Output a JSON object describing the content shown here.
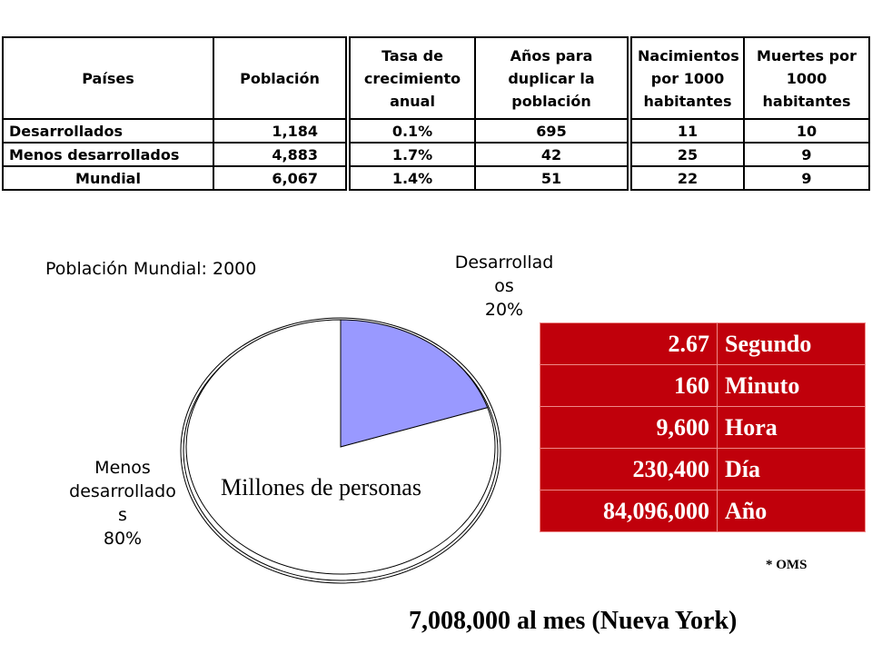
{
  "table": {
    "headers": {
      "pais": "Países",
      "poblacion": "Población",
      "tasa": "Tasa de crecimiento anual",
      "anios": "Años para duplicar la población",
      "nacimientos": "Nacimientos por 1000 habitantes",
      "muertes": "Muertes por 1000 habitantes"
    },
    "rows": [
      {
        "pais": "Desarrollados",
        "poblacion": "1,184",
        "tasa": "0.1%",
        "anios": "695",
        "nacimientos": "11",
        "muertes": "10"
      },
      {
        "pais": "Menos desarrollados",
        "poblacion": "4,883",
        "tasa": "1.7%",
        "anios": "42",
        "nacimientos": "25",
        "muertes": "9"
      },
      {
        "pais": "Mundial",
        "poblacion": "6,067",
        "tasa": "1.4%",
        "anios": "51",
        "nacimientos": "22",
        "muertes": "9"
      }
    ]
  },
  "chart_data": {
    "type": "pie",
    "title": "Población Mundial: 2000",
    "subtitle": "Millones de personas",
    "slices": [
      {
        "label_lines": [
          "Desarrollad",
          "os",
          "20%"
        ],
        "value": 20,
        "color": "#9999ff"
      },
      {
        "label_lines": [
          "Menos",
          "desarrollado",
          "s",
          "80%"
        ],
        "value": 80,
        "color": "#ffffff"
      }
    ]
  },
  "rates": {
    "rows": [
      {
        "value": "2.67",
        "unit": "Segundo"
      },
      {
        "value": "160",
        "unit": "Minuto"
      },
      {
        "value": "9,600",
        "unit": "Hora"
      },
      {
        "value": "230,400",
        "unit": "Día"
      },
      {
        "value": "84,096,000",
        "unit": "Año"
      }
    ],
    "color": "#c0000b"
  },
  "source": "* OMS",
  "footer": "7,008,000 al mes (Nueva York)"
}
